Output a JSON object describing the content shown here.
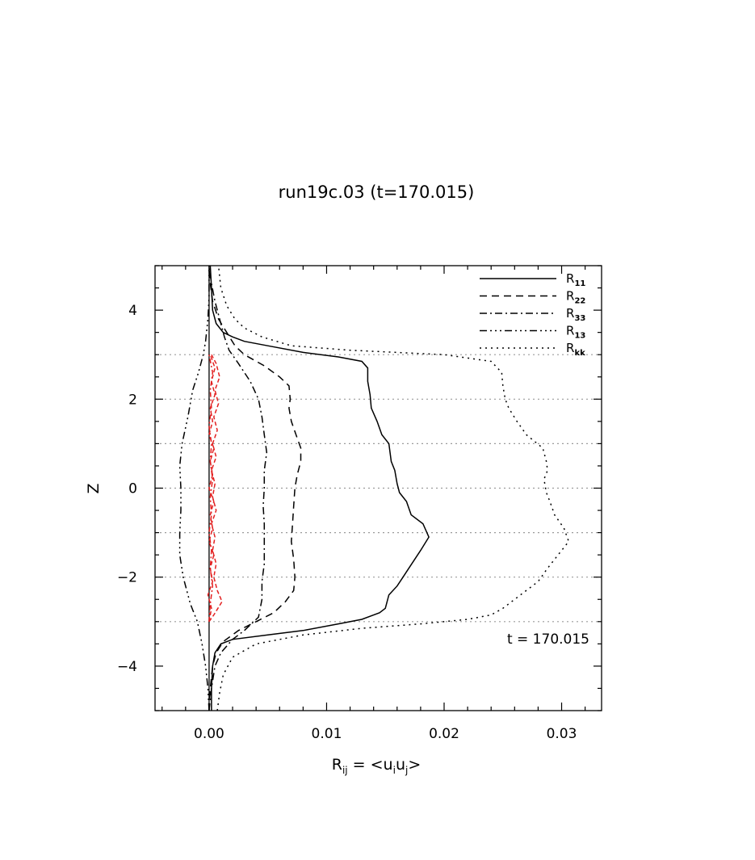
{
  "chart_data": {
    "type": "line",
    "title": "run19c.03 (t=170.015)",
    "xlabel": {
      "main": "R",
      "sub": "ij",
      "rest": " = <u",
      "u1sub": "i",
      "mid": "u",
      "u2sub": "j",
      "end": ">"
    },
    "ylabel": "Z",
    "xlim": [
      -0.0046,
      0.0334
    ],
    "ylim": [
      -5,
      5
    ],
    "x_ticks": [
      0.0,
      0.01,
      0.02,
      0.03
    ],
    "x_tick_labels": [
      "0.00",
      "0.01",
      "0.02",
      "0.03"
    ],
    "y_ticks": [
      -4,
      -2,
      0,
      2,
      4
    ],
    "y_tick_labels": [
      "−4",
      "−2",
      "0",
      "2",
      "4"
    ],
    "grid": {
      "axis": "y",
      "style": "dotted",
      "at": [
        -3,
        -2,
        -1,
        0,
        1,
        2,
        3
      ]
    },
    "zero_line_x": 0.0,
    "annotation": "t = 170.015",
    "legend_position": "top-right",
    "series": [
      {
        "name": "R",
        "sub": "11",
        "dash": "solid",
        "color": "#000000",
        "points": [
          [
            0.0002,
            -5
          ],
          [
            0.0002,
            -4.5
          ],
          [
            0.0003,
            -4.0
          ],
          [
            0.0005,
            -3.7
          ],
          [
            0.001,
            -3.5
          ],
          [
            0.002,
            -3.4
          ],
          [
            0.005,
            -3.3
          ],
          [
            0.008,
            -3.2
          ],
          [
            0.011,
            -3.05
          ],
          [
            0.013,
            -2.95
          ],
          [
            0.0145,
            -2.8
          ],
          [
            0.015,
            -2.7
          ],
          [
            0.0153,
            -2.4
          ],
          [
            0.016,
            -2.2
          ],
          [
            0.0165,
            -2.0
          ],
          [
            0.017,
            -1.8
          ],
          [
            0.018,
            -1.4
          ],
          [
            0.0187,
            -1.1
          ],
          [
            0.0182,
            -0.8
          ],
          [
            0.0172,
            -0.6
          ],
          [
            0.0168,
            -0.3
          ],
          [
            0.0162,
            -0.1
          ],
          [
            0.016,
            0.1
          ],
          [
            0.0158,
            0.4
          ],
          [
            0.0155,
            0.6
          ],
          [
            0.0153,
            1.0
          ],
          [
            0.0147,
            1.2
          ],
          [
            0.0143,
            1.5
          ],
          [
            0.0138,
            1.8
          ],
          [
            0.0137,
            2.1
          ],
          [
            0.0135,
            2.4
          ],
          [
            0.0135,
            2.7
          ],
          [
            0.013,
            2.85
          ],
          [
            0.011,
            2.95
          ],
          [
            0.008,
            3.05
          ],
          [
            0.005,
            3.2
          ],
          [
            0.003,
            3.3
          ],
          [
            0.002,
            3.4
          ],
          [
            0.0012,
            3.5
          ],
          [
            0.0006,
            3.7
          ],
          [
            0.0003,
            4.0
          ],
          [
            0.0002,
            4.5
          ],
          [
            0.0001,
            5
          ]
        ]
      },
      {
        "name": "R",
        "sub": "22",
        "dash": "9 6",
        "color": "#000000",
        "points": [
          [
            0.0,
            -5
          ],
          [
            0.0001,
            -4.5
          ],
          [
            0.0003,
            -4.0
          ],
          [
            0.0006,
            -3.7
          ],
          [
            0.0012,
            -3.45
          ],
          [
            0.0025,
            -3.2
          ],
          [
            0.004,
            -3.0
          ],
          [
            0.0055,
            -2.8
          ],
          [
            0.0065,
            -2.55
          ],
          [
            0.0072,
            -2.3
          ],
          [
            0.0073,
            -2.0
          ],
          [
            0.0072,
            -1.6
          ],
          [
            0.007,
            -1.2
          ],
          [
            0.0071,
            -0.8
          ],
          [
            0.0072,
            -0.4
          ],
          [
            0.0073,
            0.0
          ],
          [
            0.0075,
            0.3
          ],
          [
            0.0078,
            0.6
          ],
          [
            0.0078,
            0.9
          ],
          [
            0.0074,
            1.2
          ],
          [
            0.007,
            1.5
          ],
          [
            0.0068,
            1.8
          ],
          [
            0.0069,
            2.0
          ],
          [
            0.0068,
            2.3
          ],
          [
            0.006,
            2.5
          ],
          [
            0.0047,
            2.75
          ],
          [
            0.003,
            3.0
          ],
          [
            0.0022,
            3.2
          ],
          [
            0.0015,
            3.5
          ],
          [
            0.0008,
            3.8
          ],
          [
            0.0003,
            4.2
          ],
          [
            0.0001,
            4.6
          ],
          [
            0.0,
            5
          ]
        ]
      },
      {
        "name": "R",
        "sub": "33",
        "dash": "9 4 2 4",
        "color": "#000000",
        "points": [
          [
            0.0,
            -5
          ],
          [
            0.0002,
            -4.5
          ],
          [
            0.0005,
            -4.0
          ],
          [
            0.001,
            -3.7
          ],
          [
            0.002,
            -3.4
          ],
          [
            0.003,
            -3.2
          ],
          [
            0.0042,
            -2.9
          ],
          [
            0.0045,
            -2.5
          ],
          [
            0.0045,
            -2.1
          ],
          [
            0.0047,
            -1.7
          ],
          [
            0.0047,
            -1.2
          ],
          [
            0.0047,
            -0.8
          ],
          [
            0.0046,
            -0.4
          ],
          [
            0.0047,
            0.0
          ],
          [
            0.0047,
            0.4
          ],
          [
            0.0049,
            0.8
          ],
          [
            0.0047,
            1.2
          ],
          [
            0.0045,
            1.6
          ],
          [
            0.0042,
            2.0
          ],
          [
            0.0035,
            2.4
          ],
          [
            0.0025,
            2.8
          ],
          [
            0.0017,
            3.1
          ],
          [
            0.0013,
            3.4
          ],
          [
            0.0009,
            3.8
          ],
          [
            0.0005,
            4.2
          ],
          [
            0.0002,
            4.6
          ],
          [
            0.0,
            5
          ]
        ]
      },
      {
        "name": "R",
        "sub": "13",
        "dash": "9 4 2 4 2 4 2 4",
        "color": "#000000",
        "points": [
          [
            0.0,
            -5
          ],
          [
            -0.0001,
            -4.5
          ],
          [
            -0.0003,
            -4.0
          ],
          [
            -0.0006,
            -3.5
          ],
          [
            -0.001,
            -3.0
          ],
          [
            -0.0016,
            -2.6
          ],
          [
            -0.0022,
            -2.0
          ],
          [
            -0.0025,
            -1.5
          ],
          [
            -0.0025,
            -1.0
          ],
          [
            -0.0024,
            -0.5
          ],
          [
            -0.0024,
            0.0
          ],
          [
            -0.0025,
            0.5
          ],
          [
            -0.0023,
            1.0
          ],
          [
            -0.0018,
            1.6
          ],
          [
            -0.0014,
            2.2
          ],
          [
            -0.0009,
            2.6
          ],
          [
            -0.0005,
            3.0
          ],
          [
            -0.0003,
            3.3
          ],
          [
            -0.0001,
            3.8
          ],
          [
            0.0,
            4.3
          ],
          [
            0.0,
            5
          ]
        ]
      },
      {
        "name": "R",
        "sub": "kk",
        "dash": "2 5",
        "color": "#000000",
        "points": [
          [
            0.0007,
            -5
          ],
          [
            0.0009,
            -4.6
          ],
          [
            0.0012,
            -4.2
          ],
          [
            0.002,
            -3.8
          ],
          [
            0.004,
            -3.5
          ],
          [
            0.008,
            -3.3
          ],
          [
            0.013,
            -3.15
          ],
          [
            0.018,
            -3.05
          ],
          [
            0.022,
            -2.95
          ],
          [
            0.024,
            -2.85
          ],
          [
            0.025,
            -2.7
          ],
          [
            0.0265,
            -2.4
          ],
          [
            0.028,
            -2.1
          ],
          [
            0.0288,
            -1.8
          ],
          [
            0.0297,
            -1.5
          ],
          [
            0.0306,
            -1.2
          ],
          [
            0.0302,
            -0.9
          ],
          [
            0.0294,
            -0.6
          ],
          [
            0.029,
            -0.3
          ],
          [
            0.0287,
            -0.1
          ],
          [
            0.0285,
            0.2
          ],
          [
            0.0288,
            0.4
          ],
          [
            0.0287,
            0.6
          ],
          [
            0.0284,
            0.9
          ],
          [
            0.027,
            1.2
          ],
          [
            0.0262,
            1.5
          ],
          [
            0.0255,
            1.8
          ],
          [
            0.0252,
            2.0
          ],
          [
            0.025,
            2.3
          ],
          [
            0.0249,
            2.6
          ],
          [
            0.024,
            2.85
          ],
          [
            0.02,
            3.0
          ],
          [
            0.012,
            3.1
          ],
          [
            0.007,
            3.2
          ],
          [
            0.0045,
            3.4
          ],
          [
            0.003,
            3.6
          ],
          [
            0.0022,
            3.8
          ],
          [
            0.0015,
            4.1
          ],
          [
            0.001,
            4.5
          ],
          [
            0.0008,
            5
          ]
        ]
      },
      {
        "name": "",
        "sub": "",
        "dash": "5 3",
        "color": "#e32020",
        "points": [
          [
            0.0,
            -3.0
          ],
          [
            0.0004,
            -2.85
          ],
          [
            0.0011,
            -2.55
          ],
          [
            0.0007,
            -2.3
          ],
          [
            0.0004,
            -2.0
          ],
          [
            0.0006,
            -1.7
          ],
          [
            0.0003,
            -1.4
          ],
          [
            0.0005,
            -1.1
          ],
          [
            0.0002,
            -0.8
          ],
          [
            0.0006,
            -0.5
          ],
          [
            0.0003,
            -0.2
          ],
          [
            0.0005,
            0.1
          ],
          [
            0.0002,
            0.4
          ],
          [
            0.0006,
            0.7
          ],
          [
            0.0003,
            1.0
          ],
          [
            0.0007,
            1.3
          ],
          [
            0.0004,
            1.6
          ],
          [
            0.0008,
            1.9
          ],
          [
            0.0005,
            2.2
          ],
          [
            0.0009,
            2.5
          ],
          [
            0.0006,
            2.8
          ],
          [
            0.0002,
            3.0
          ]
        ]
      },
      {
        "name": "",
        "sub": "",
        "dash": "5 3",
        "color": "#e32020",
        "points": [
          [
            0.0,
            -3.0
          ],
          [
            0.0002,
            -2.7
          ],
          [
            -0.0001,
            -2.4
          ],
          [
            0.0003,
            -2.1
          ],
          [
            0.0001,
            -1.8
          ],
          [
            0.0004,
            -1.5
          ],
          [
            0.0,
            -1.2
          ],
          [
            0.0003,
            -0.9
          ],
          [
            0.0001,
            -0.6
          ],
          [
            0.0004,
            -0.3
          ],
          [
            0.0,
            0.0
          ],
          [
            0.0003,
            0.3
          ],
          [
            0.0001,
            0.6
          ],
          [
            0.0004,
            0.9
          ],
          [
            0.0,
            1.2
          ],
          [
            0.0003,
            1.5
          ],
          [
            0.0001,
            1.8
          ],
          [
            0.0005,
            2.1
          ],
          [
            0.0002,
            2.4
          ],
          [
            0.0005,
            2.7
          ],
          [
            0.0001,
            3.0
          ]
        ]
      },
      {
        "name": "",
        "sub": "",
        "dash": "6 3 2 3",
        "color": "#e32020",
        "points": [
          [
            0.0,
            -3.0
          ],
          [
            0.0001,
            -2.6
          ],
          [
            0.0003,
            -2.2
          ],
          [
            0.0001,
            -1.8
          ],
          [
            0.0002,
            -1.4
          ],
          [
            0.0,
            -1.0
          ],
          [
            0.0002,
            -0.6
          ],
          [
            0.0001,
            -0.2
          ],
          [
            0.0003,
            0.2
          ],
          [
            0.0001,
            0.6
          ],
          [
            0.0002,
            1.0
          ],
          [
            0.0,
            1.4
          ],
          [
            0.0002,
            1.8
          ],
          [
            0.0001,
            2.2
          ],
          [
            0.0003,
            2.6
          ],
          [
            0.0,
            3.0
          ]
        ]
      }
    ]
  }
}
